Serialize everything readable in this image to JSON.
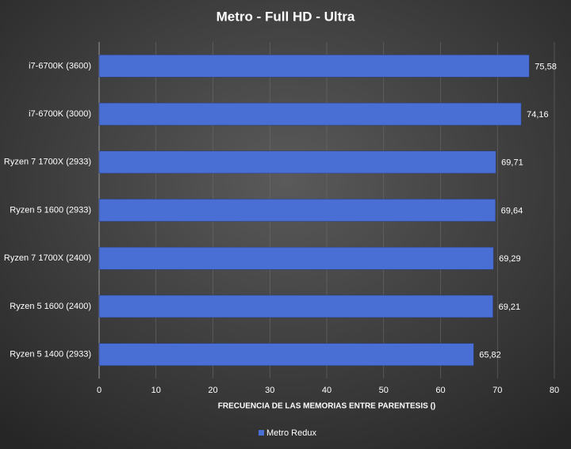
{
  "chart_data": {
    "type": "bar",
    "orientation": "horizontal",
    "title": "Metro  -  Full  HD  -  Ultra",
    "x_label": "FRECUENCIA DE LAS MEMORIAS  ENTRE PARENTESIS ()",
    "categories": [
      "i7-6700K (3600)",
      "i7-6700K (3000)",
      "Ryzen 7 1700X (2933)",
      "Ryzen 5 1600 (2933)",
      "Ryzen 7 1700X (2400)",
      "Ryzen 5 1600 (2400)",
      "Ryzen 5 1400 (2933)"
    ],
    "series": [
      {
        "name": "Metro Redux",
        "color": "#4a6fd4",
        "values": [
          75.58,
          74.16,
          69.71,
          69.64,
          69.29,
          69.21,
          65.82
        ],
        "value_labels": [
          "75,58",
          "74,16",
          "69,71",
          "69,64",
          "69,29",
          "69,21",
          "65,82"
        ]
      }
    ],
    "xlim": [
      0,
      80
    ],
    "xticks": [
      0,
      10,
      20,
      30,
      40,
      50,
      60,
      70,
      80
    ],
    "grid": true,
    "legend": "bottom"
  }
}
